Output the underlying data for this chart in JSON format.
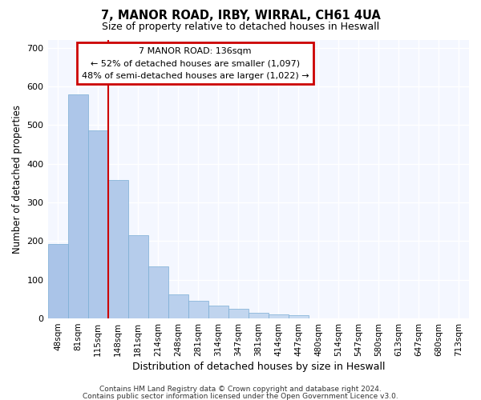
{
  "title1": "7, MANOR ROAD, IRBY, WIRRAL, CH61 4UA",
  "title2": "Size of property relative to detached houses in Heswall",
  "xlabel": "Distribution of detached houses by size in Heswall",
  "ylabel": "Number of detached properties",
  "categories": [
    "48sqm",
    "81sqm",
    "115sqm",
    "148sqm",
    "181sqm",
    "214sqm",
    "248sqm",
    "281sqm",
    "314sqm",
    "347sqm",
    "381sqm",
    "414sqm",
    "447sqm",
    "480sqm",
    "514sqm",
    "547sqm",
    "580sqm",
    "613sqm",
    "647sqm",
    "680sqm",
    "713sqm"
  ],
  "values": [
    192,
    580,
    487,
    357,
    215,
    135,
    63,
    46,
    33,
    25,
    15,
    11,
    9,
    0,
    0,
    0,
    0,
    0,
    0,
    0,
    0
  ],
  "bar_color_left": "#aac4e8",
  "bar_color_right": "#d8e8f8",
  "bar_edgecolor": "#7aadd4",
  "bg_color": "#f4f7ff",
  "grid_color": "#ffffff",
  "annotation_text": "7 MANOR ROAD: 136sqm\n← 52% of detached houses are smaller (1,097)\n48% of semi-detached houses are larger (1,022) →",
  "annotation_border_color": "#cc0000",
  "vline_color": "#cc0000",
  "vline_x": 2.5,
  "ylim": [
    0,
    720
  ],
  "yticks": [
    0,
    100,
    200,
    300,
    400,
    500,
    600,
    700
  ],
  "footnote1": "Contains HM Land Registry data © Crown copyright and database right 2024.",
  "footnote2": "Contains public sector information licensed under the Open Government Licence v3.0."
}
